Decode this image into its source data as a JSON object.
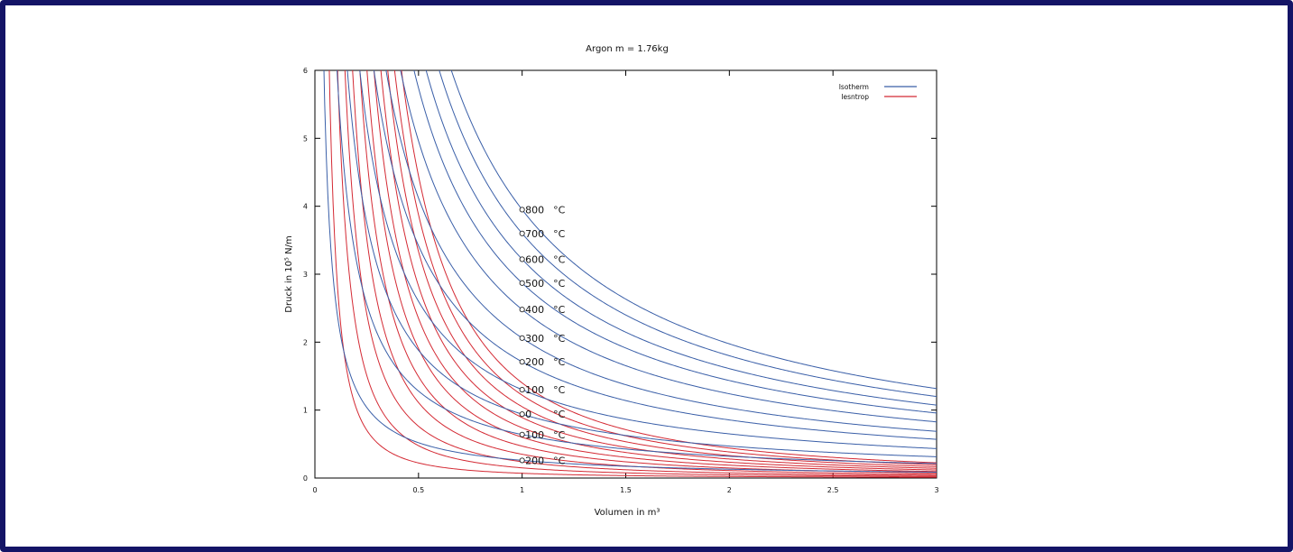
{
  "colors": {
    "frame": "#141466",
    "isotherm": "#3a5fa8",
    "isentrop": "#d42a34"
  },
  "chart_data": {
    "type": "line",
    "title": "Argon m = 1.76kg",
    "xlabel": "Volumen in m³",
    "ylabel": "Druck in 10⁵ N/m",
    "xlim": [
      0,
      3
    ],
    "ylim": [
      0,
      6
    ],
    "x_ticks": [
      {
        "v": 0,
        "label": "0"
      },
      {
        "v": 0.5,
        "label": "0.5"
      },
      {
        "v": 1,
        "label": "1"
      },
      {
        "v": 1.5,
        "label": "1.5"
      },
      {
        "v": 2,
        "label": "2"
      },
      {
        "v": 2.5,
        "label": "2.5"
      },
      {
        "v": 3,
        "label": "3"
      }
    ],
    "y_ticks": [
      {
        "v": 0,
        "label": "0"
      },
      {
        "v": 1,
        "label": "1"
      },
      {
        "v": 2,
        "label": "2"
      },
      {
        "v": 3,
        "label": "3"
      },
      {
        "v": 4,
        "label": "4"
      },
      {
        "v": 5,
        "label": "5"
      },
      {
        "v": 6,
        "label": "6"
      }
    ],
    "grid": false,
    "legend": {
      "placement": "top-right",
      "entries": [
        {
          "label": "Isotherm",
          "color": "#3a5fa8"
        },
        {
          "label": "Iesntrop",
          "color": "#d42a34"
        }
      ]
    },
    "isotherms": [
      {
        "label": "200",
        "unit": "°C",
        "pv": 0.26
      },
      {
        "label": "100",
        "unit": "°C",
        "pv": 0.64
      },
      {
        "label": "0",
        "unit": "°C",
        "pv": 0.94
      },
      {
        "label": "100",
        "unit": "°C",
        "pv": 1.3
      },
      {
        "label": "200",
        "unit": "°C",
        "pv": 1.71
      },
      {
        "label": "300",
        "unit": "°C",
        "pv": 2.06
      },
      {
        "label": "400",
        "unit": "°C",
        "pv": 2.48
      },
      {
        "label": "500",
        "unit": "°C",
        "pv": 2.87
      },
      {
        "label": "600",
        "unit": "°C",
        "pv": 3.22
      },
      {
        "label": "700",
        "unit": "°C",
        "pv": 3.6
      },
      {
        "label": "800",
        "unit": "°C",
        "pv": 3.95
      }
    ],
    "isentropes": [
      {
        "gamma": 1.667,
        "c": 0.07
      },
      {
        "gamma": 1.667,
        "c": 0.15
      },
      {
        "gamma": 1.667,
        "c": 0.24
      },
      {
        "gamma": 1.667,
        "c": 0.35
      },
      {
        "gamma": 1.667,
        "c": 0.47
      },
      {
        "gamma": 1.667,
        "c": 0.6
      },
      {
        "gamma": 1.667,
        "c": 0.74
      },
      {
        "gamma": 1.667,
        "c": 0.89
      },
      {
        "gamma": 1.667,
        "c": 1.05
      },
      {
        "gamma": 1.667,
        "c": 1.22
      },
      {
        "gamma": 1.667,
        "c": 1.4
      }
    ]
  }
}
